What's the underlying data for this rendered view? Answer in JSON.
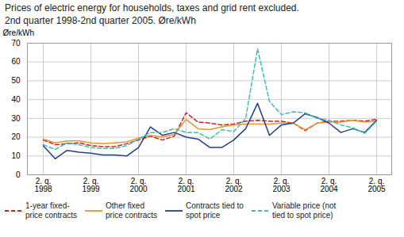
{
  "chart_data": {
    "type": "line",
    "title": "Prices of electric energy for households, taxes and grid rent excluded.",
    "subtitle": "2nd quarter 1998-2nd quarter 2005. Øre/kWh",
    "ylabel": "Øre/kWh",
    "categories": [
      "2. q.\n1998",
      null,
      null,
      null,
      "2. q.\n1999",
      null,
      null,
      null,
      "2. q.\n2000",
      null,
      null,
      null,
      "2. q.\n2001",
      null,
      null,
      null,
      "2. q.\n2002",
      null,
      null,
      null,
      "2. q.\n2003",
      null,
      null,
      null,
      "2. q.\n2004",
      null,
      null,
      null,
      "2. q.\n2005"
    ],
    "ylim": [
      0,
      70
    ],
    "yticks": [
      0,
      10,
      20,
      30,
      40,
      50,
      60,
      70
    ],
    "grid": true,
    "legend": "bottom",
    "series": [
      {
        "name": "1-year fixed-\nprice contracts",
        "color": "#cc2222",
        "line_style": "dashed",
        "values": [
          18.5,
          16.0,
          16.5,
          17.0,
          15.5,
          15.0,
          15.0,
          16.5,
          18.5,
          20.5,
          18.5,
          20.5,
          33.0,
          28.0,
          27.5,
          26.5,
          27.0,
          28.5,
          29.0,
          28.5,
          28.5,
          27.5,
          23.5,
          27.5,
          28.5,
          28.5,
          29.0,
          28.5,
          29.5
        ]
      },
      {
        "name": "Other fixed\nprice contracts",
        "color": "#f0922b",
        "line_style": "solid",
        "values": [
          19.0,
          17.0,
          18.0,
          18.0,
          17.0,
          16.5,
          17.0,
          17.5,
          19.5,
          21.0,
          20.0,
          21.5,
          29.5,
          24.5,
          24.0,
          25.5,
          26.5,
          27.0,
          27.0,
          27.0,
          27.5,
          27.5,
          24.0,
          27.5,
          28.0,
          28.0,
          29.0,
          28.0,
          28.5
        ]
      },
      {
        "name": "Contracts tied to\nspot price",
        "color": "#1f3f8f",
        "line_style": "solid",
        "values": [
          15.5,
          8.5,
          13.0,
          12.0,
          11.5,
          10.5,
          10.5,
          10.0,
          14.5,
          25.5,
          21.0,
          22.5,
          20.0,
          19.0,
          14.5,
          14.5,
          18.5,
          24.5,
          38.0,
          21.0,
          26.5,
          27.5,
          32.5,
          30.5,
          27.5,
          22.5,
          24.5,
          22.5,
          29.0
        ]
      },
      {
        "name": "Variable price (not\ntied to spot price)",
        "color": "#3dbfb8",
        "line_style": "dashed",
        "values": [
          16.0,
          13.5,
          17.0,
          16.0,
          14.5,
          14.0,
          14.0,
          15.5,
          19.0,
          22.5,
          22.5,
          24.5,
          22.5,
          22.5,
          19.0,
          24.0,
          23.0,
          30.0,
          67.0,
          39.0,
          32.0,
          33.5,
          33.0,
          30.0,
          29.0,
          26.5,
          25.0,
          22.0,
          28.5
        ]
      }
    ]
  }
}
